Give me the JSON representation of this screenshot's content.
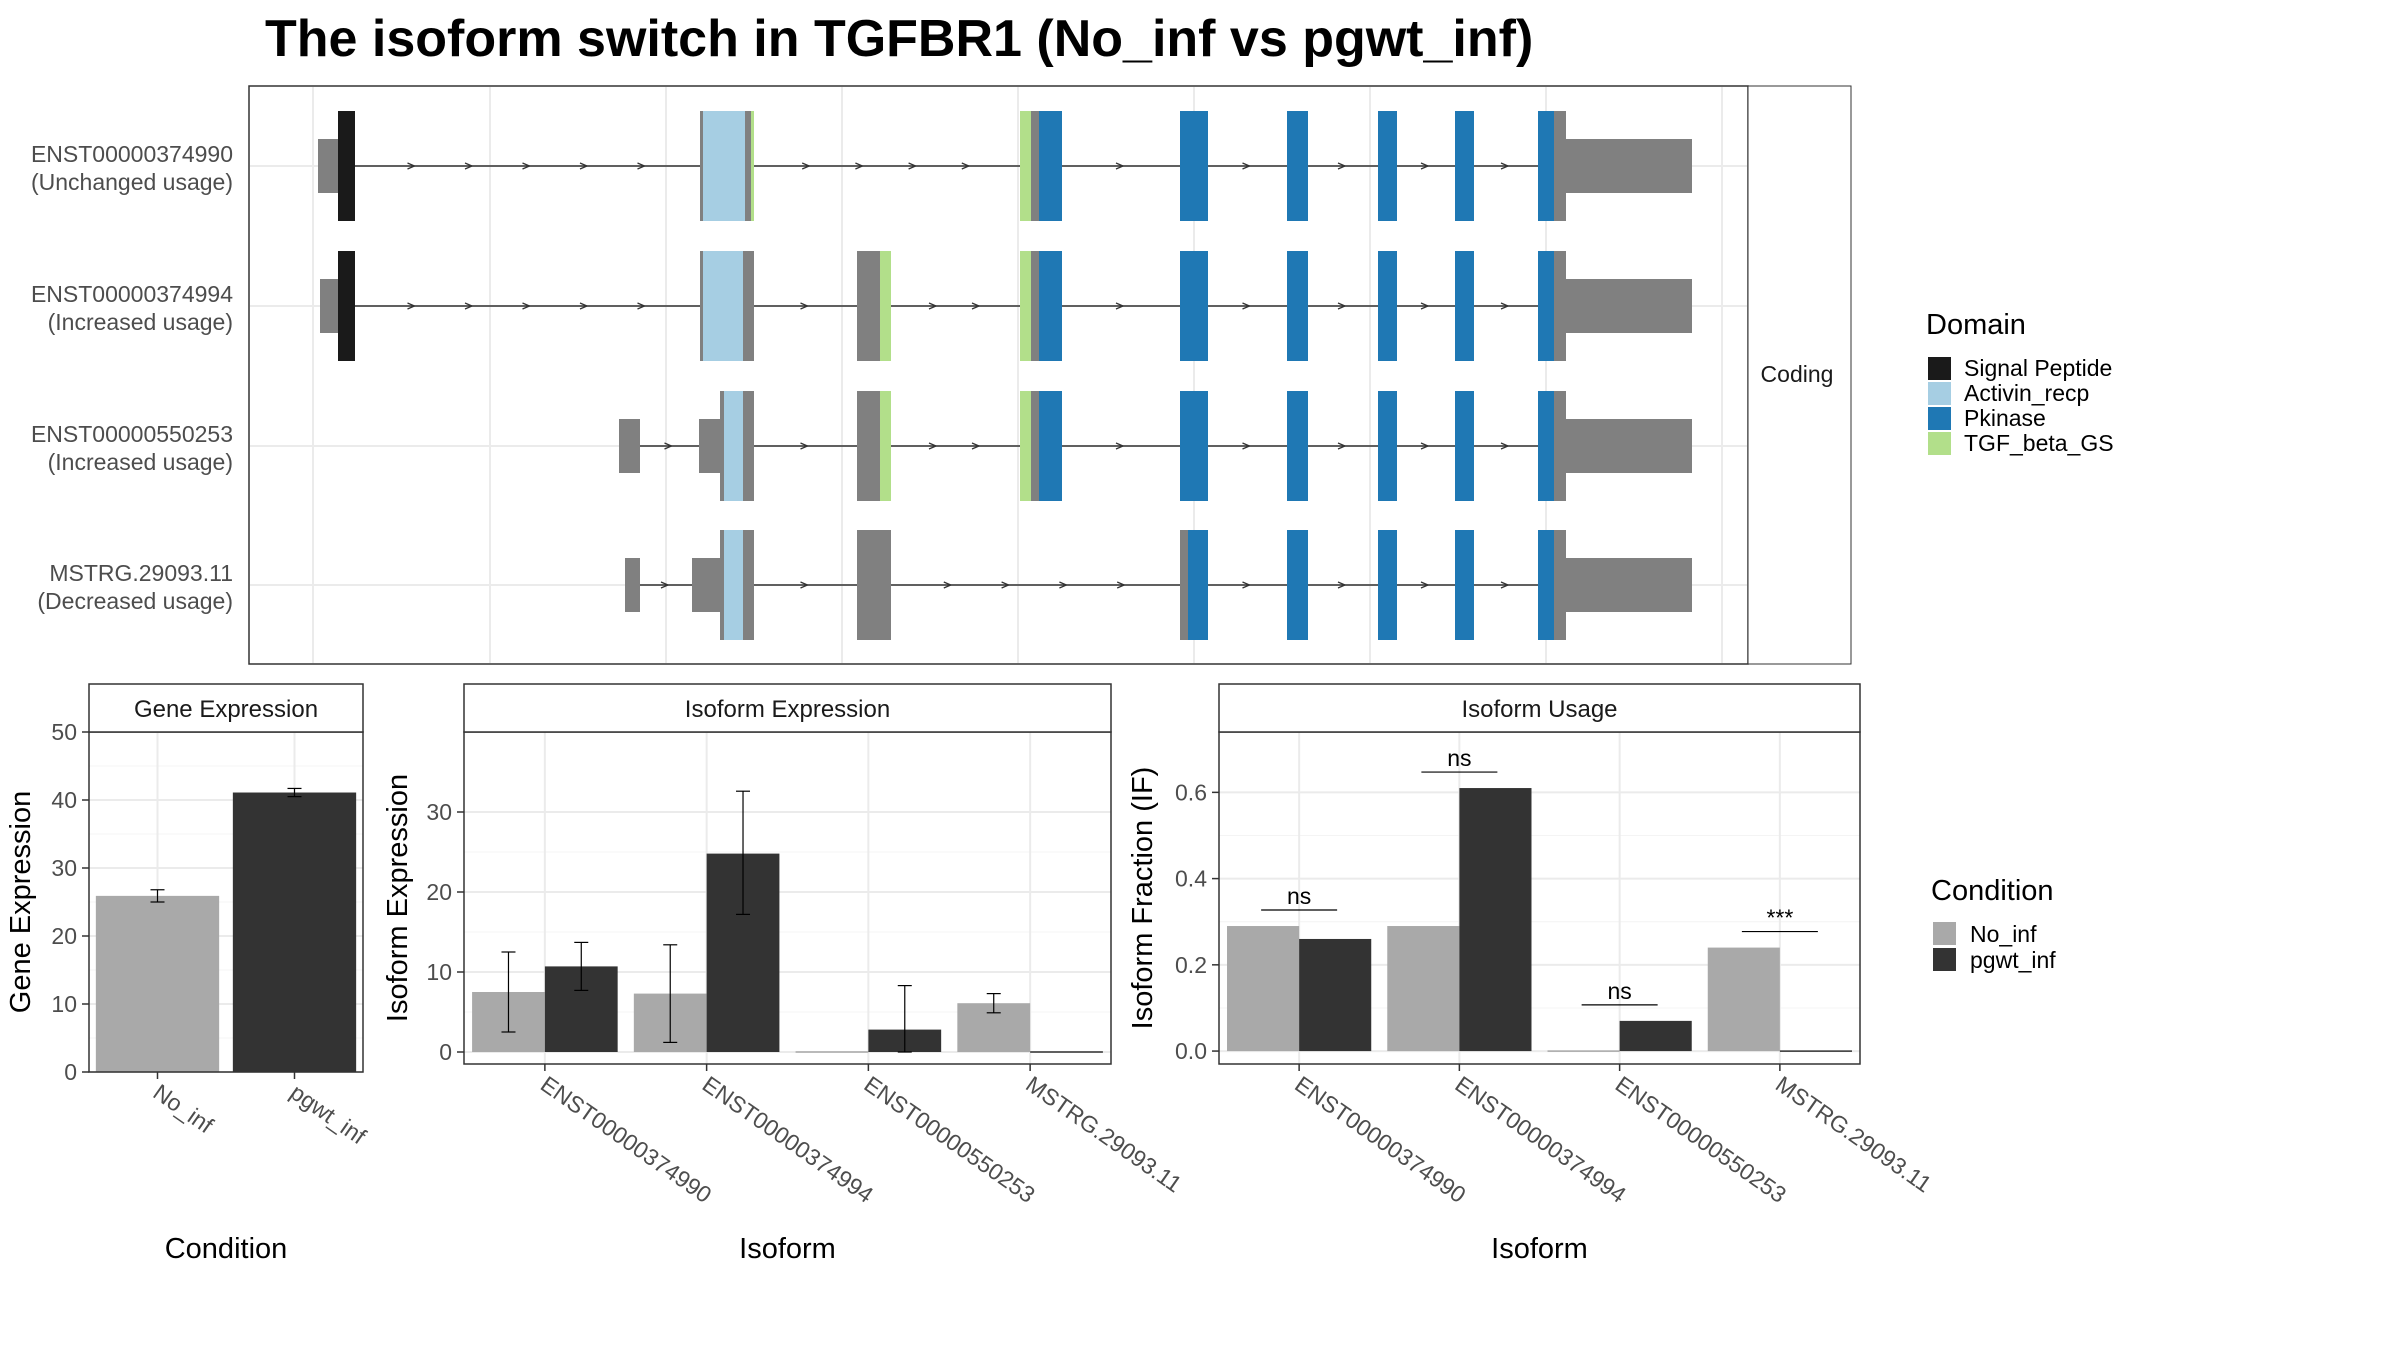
{
  "title": "The isoform switch in TGFBR1 (No_inf vs pgwt_inf)",
  "colors": {
    "signal_peptide": "#1a1a1a",
    "activin_recp": "#a6cee3",
    "pkinase": "#1f78b4",
    "tgf_beta_gs": "#b2df8a",
    "noncoding": "#808080",
    "no_inf": "#a9a9a9",
    "pgwt_inf": "#333333"
  },
  "legends": {
    "domain": {
      "title": "Domain",
      "items": [
        {
          "label": "Signal Peptide",
          "key": "signal_peptide"
        },
        {
          "label": "Activin_recp",
          "key": "activin_recp"
        },
        {
          "label": "Pkinase",
          "key": "pkinase"
        },
        {
          "label": "TGF_beta_GS",
          "key": "tgf_beta_gs"
        }
      ]
    },
    "condition": {
      "title": "Condition",
      "items": [
        {
          "label": "No_inf",
          "key": "no_inf"
        },
        {
          "label": "pgwt_inf",
          "key": "pgwt_inf"
        }
      ]
    }
  },
  "structure": {
    "facet_label": "Coding",
    "transcripts": [
      {
        "id": "ENST00000374990",
        "usage": "(Unchanged usage)"
      },
      {
        "id": "ENST00000374994",
        "usage": "(Increased usage)"
      },
      {
        "id": "ENST00000550253",
        "usage": "(Increased usage)"
      },
      {
        "id": "MSTRG.29093.11",
        "usage": "(Decreased usage)"
      }
    ]
  },
  "chart_data": [
    {
      "type": "bar",
      "panel": "Gene Expression",
      "categories": [
        "No_inf",
        "pgwt_inf"
      ],
      "values": [
        25.9,
        41.1
      ],
      "error_low": [
        25.0,
        40.5
      ],
      "error_high": [
        26.8,
        41.7
      ],
      "xlabel": "Condition",
      "ylabel": "Gene Expression",
      "ylim": [
        0,
        50
      ],
      "yticks": [
        0,
        10,
        20,
        30,
        40,
        50
      ]
    },
    {
      "type": "bar",
      "panel": "Isoform Expression",
      "categories": [
        "ENST00000374990",
        "ENST00000374994",
        "ENST00000550253",
        "MSTRG.29093.11"
      ],
      "series": [
        {
          "name": "No_inf",
          "values": [
            7.5,
            7.3,
            0,
            6.1
          ],
          "error_low": [
            2.5,
            1.2,
            0,
            4.9
          ],
          "error_high": [
            12.5,
            13.4,
            0,
            7.3
          ]
        },
        {
          "name": "pgwt_inf",
          "values": [
            10.7,
            24.8,
            2.8,
            0
          ],
          "error_low": [
            7.7,
            17.2,
            0,
            0
          ],
          "error_high": [
            13.7,
            32.6,
            8.3,
            0
          ]
        }
      ],
      "xlabel": "Isoform",
      "ylabel": "Isoform Expression",
      "ylim": [
        -1.5,
        40
      ],
      "yticks": [
        0,
        10,
        20,
        30
      ]
    },
    {
      "type": "bar",
      "panel": "Isoform Usage",
      "categories": [
        "ENST00000374990",
        "ENST00000374994",
        "ENST00000550253",
        "MSTRG.29093.11"
      ],
      "series": [
        {
          "name": "No_inf",
          "values": [
            0.29,
            0.29,
            0,
            0.24
          ]
        },
        {
          "name": "pgwt_inf",
          "values": [
            0.26,
            0.61,
            0.07,
            0
          ]
        }
      ],
      "significance": [
        "ns",
        "ns",
        "ns",
        "***"
      ],
      "xlabel": "Isoform",
      "ylabel": "Isoform Fraction (IF)",
      "ylim": [
        -0.03,
        0.74
      ],
      "yticks": [
        0.0,
        0.2,
        0.4,
        0.6
      ]
    }
  ]
}
